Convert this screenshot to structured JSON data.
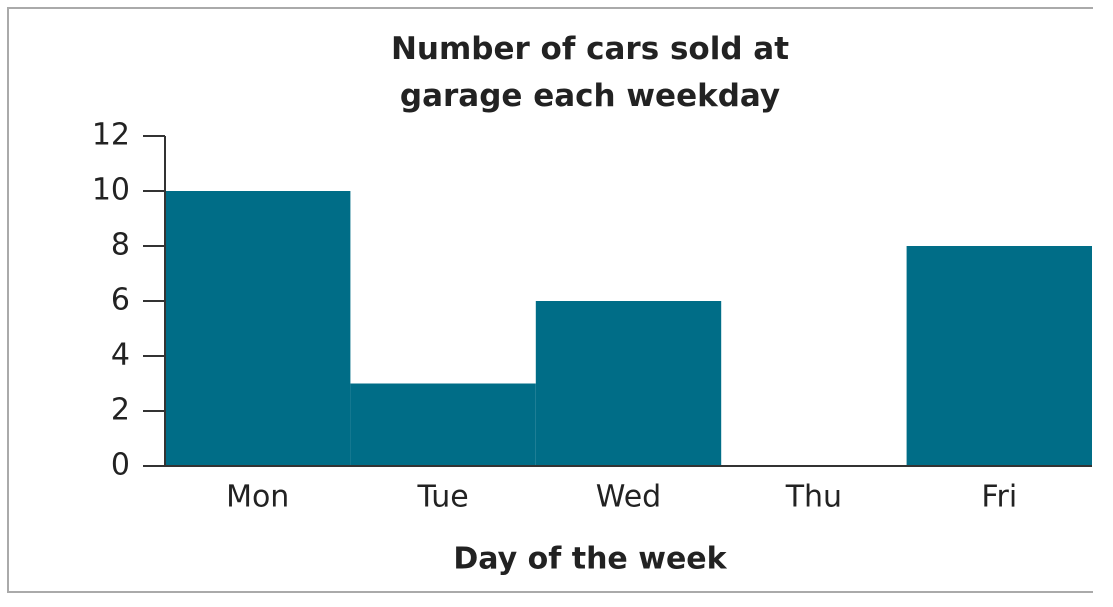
{
  "chart_data": {
    "type": "bar",
    "title": "Number of cars sold at garage each weekday",
    "x_label": "Day of the week",
    "categories": [
      "Mon",
      "Tue",
      "Wed",
      "Thu",
      "Fri"
    ],
    "values": [
      10,
      3,
      6,
      0,
      8
    ],
    "color": "#006d87",
    "ylim": [
      0,
      12
    ],
    "yticks": [
      0,
      2,
      4,
      6,
      8,
      10,
      12
    ],
    "grid": false
  }
}
